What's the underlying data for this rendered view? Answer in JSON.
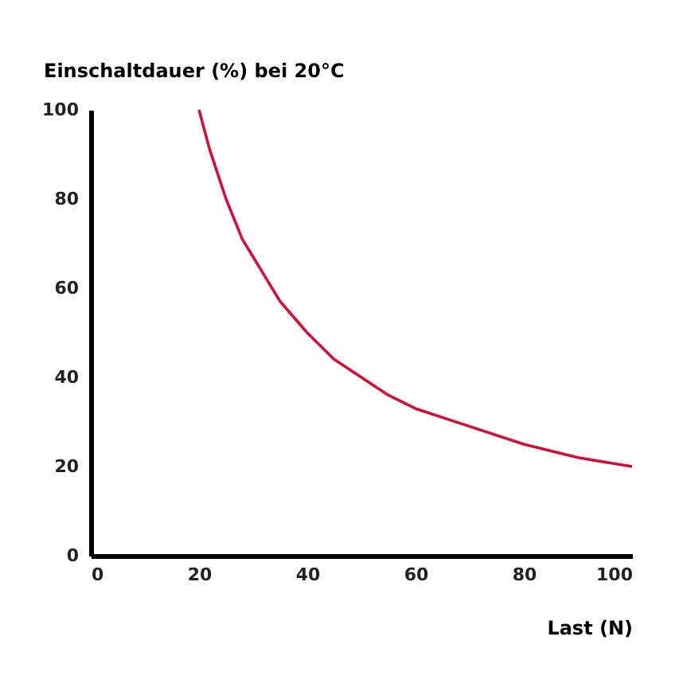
{
  "chart_data": {
    "type": "line",
    "ylabel": "Einschaltdauer (%) bei 20°C",
    "xlabel": "Last (N)",
    "x": [
      20,
      22,
      25,
      28,
      30,
      33,
      35,
      40,
      45,
      50,
      55,
      60,
      70,
      80,
      90,
      100
    ],
    "series": [
      {
        "color": "#d0103a",
        "values": [
          100,
          91,
          80,
          71,
          67,
          61,
          57,
          50,
          44,
          40,
          36,
          33,
          29,
          25,
          22,
          20
        ]
      }
    ],
    "xlim": [
      0,
      100
    ],
    "xticks": [
      0,
      20,
      40,
      60,
      80,
      100
    ],
    "ylim": [
      0,
      100
    ],
    "yticks": [
      0,
      20,
      40,
      60,
      80,
      100
    ],
    "grid": false,
    "legend": false,
    "marker": "none",
    "line_style": "solid"
  }
}
